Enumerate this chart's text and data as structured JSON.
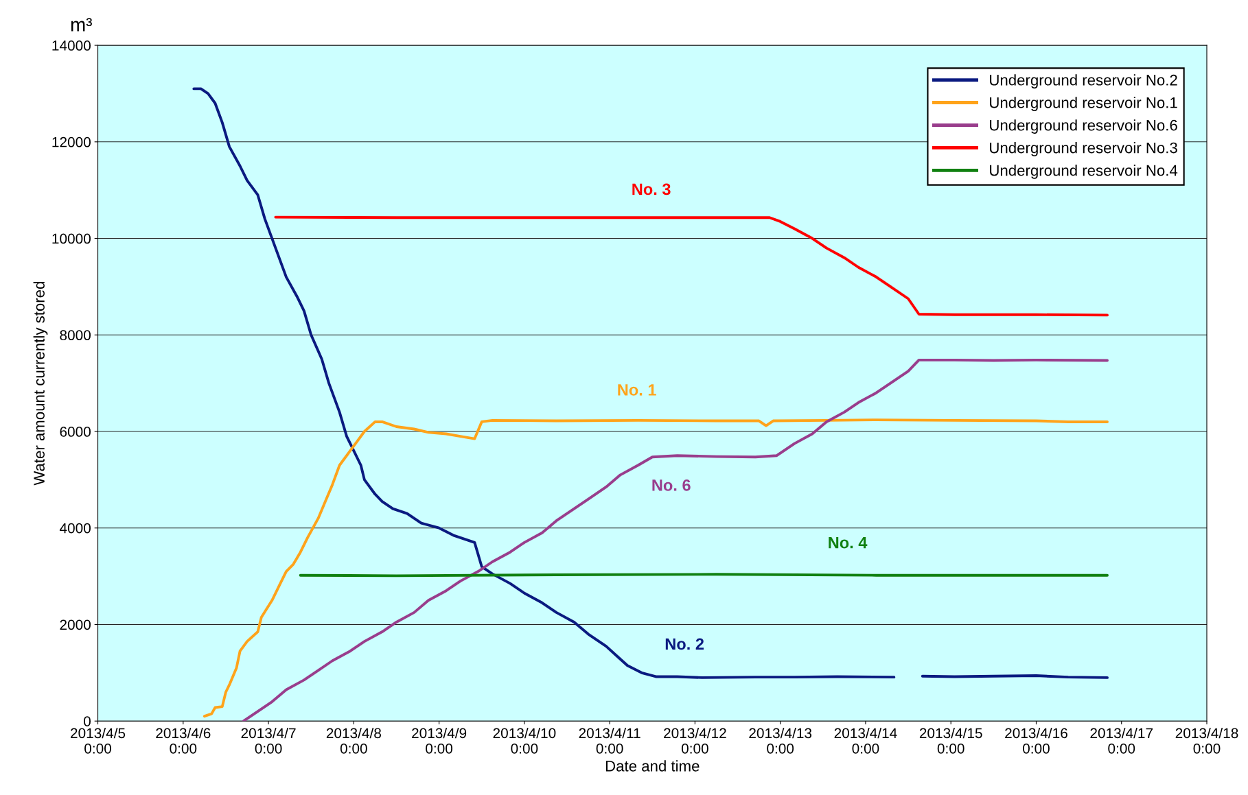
{
  "chart_data": {
    "type": "line",
    "xlabel": "Date and time",
    "ylabel": "Water amount currently stored",
    "xlim": [
      "2013-04-05T00:00",
      "2013-04-18T00:00"
    ],
    "ylim": [
      0,
      14000
    ],
    "xticks": [
      {
        "value": "2013-04-05T00:00",
        "label": "2013/4/5\n0:00"
      },
      {
        "value": "2013-04-06T00:00",
        "label": "2013/4/6\n0:00"
      },
      {
        "value": "2013-04-07T00:00",
        "label": "2013/4/7\n0:00"
      },
      {
        "value": "2013-04-08T00:00",
        "label": "2013/4/8\n0:00"
      },
      {
        "value": "2013-04-09T00:00",
        "label": "2013/4/9\n0:00"
      },
      {
        "value": "2013-04-10T00:00",
        "label": "2013/4/10\n0:00"
      },
      {
        "value": "2013-04-11T00:00",
        "label": "2013/4/11\n0:00"
      },
      {
        "value": "2013-04-12T00:00",
        "label": "2013/4/12\n0:00"
      },
      {
        "value": "2013-04-13T00:00",
        "label": "2013/4/13\n0:00"
      },
      {
        "value": "2013-04-14T00:00",
        "label": "2013/4/14\n0:00"
      },
      {
        "value": "2013-04-15T00:00",
        "label": "2013/4/15\n0:00"
      },
      {
        "value": "2013-04-16T00:00",
        "label": "2013/4/16\n0:00"
      },
      {
        "value": "2013-04-17T00:00",
        "label": "2013/4/17\n0:00"
      },
      {
        "value": "2013-04-18T00:00",
        "label": "2013/4/18\n0:00"
      }
    ],
    "yticks": [
      0,
      2000,
      4000,
      6000,
      8000,
      10000,
      12000,
      14000
    ],
    "grid": "y",
    "legend": "top right",
    "marker": "none",
    "line_style": "solid",
    "series": [
      {
        "name": "Underground reservoir No.2",
        "color": "#0a1a80",
        "x": [
          "2013-04-06T03:00",
          "2013-04-06T05:00",
          "2013-04-06T07:00",
          "2013-04-06T09:00",
          "2013-04-06T11:00",
          "2013-04-06T13:00",
          "2013-04-06T16:00",
          "2013-04-06T18:00",
          "2013-04-06T21:00",
          "2013-04-06T23:00",
          "2013-04-07T02:00",
          "2013-04-07T05:00",
          "2013-04-07T08:00",
          "2013-04-07T10:00",
          "2013-04-07T12:00",
          "2013-04-07T15:00",
          "2013-04-07T17:00",
          "2013-04-07T20:00",
          "2013-04-07T22:00",
          "2013-04-08T00:00",
          "2013-04-08T02:00",
          "2013-04-08T03:00",
          "2013-04-08T06:00",
          "2013-04-08T08:00",
          "2013-04-08T11:00",
          "2013-04-08T15:00",
          "2013-04-08T19:00",
          "2013-04-09T00:00",
          "2013-04-09T04:00",
          "2013-04-09T08:00",
          "2013-04-09T10:00",
          "2013-04-09T12:00",
          "2013-04-09T15:00",
          "2013-04-09T20:00",
          "2013-04-10T00:00",
          "2013-04-10T05:00",
          "2013-04-10T09:00",
          "2013-04-10T14:00",
          "2013-04-10T18:00",
          "2013-04-10T23:00",
          "2013-04-11T02:00",
          "2013-04-11T05:00",
          "2013-04-11T09:00",
          "2013-04-11T13:00",
          "2013-04-11T19:00",
          "2013-04-12T02:00",
          "2013-04-12T17:00",
          "2013-04-13T04:00",
          "2013-04-13T16:00",
          "2013-04-14T08:00",
          "2013-04-14T12:00",
          "2013-04-14T16:00",
          "2013-04-15T01:00",
          "2013-04-15T12:00",
          "2013-04-16T00:00",
          "2013-04-16T09:00",
          "2013-04-16T20:00"
        ],
        "values": [
          13100,
          13100,
          13000,
          12800,
          12400,
          11900,
          11500,
          11200,
          10900,
          10400,
          9800,
          9200,
          8800,
          8500,
          8000,
          7500,
          7000,
          6400,
          5900,
          5600,
          5300,
          5000,
          4700,
          4550,
          4400,
          4300,
          4100,
          4000,
          3850,
          3750,
          3700,
          3200,
          3050,
          2850,
          2650,
          2450,
          2250,
          2050,
          1800,
          1550,
          1350,
          1150,
          1000,
          920,
          920,
          900,
          910,
          910,
          920,
          910,
          null,
          930,
          920,
          930,
          940,
          910,
          900
        ]
      },
      {
        "name": "Underground reservoir No.1",
        "color": "#ffa31a",
        "x": [
          "2013-04-06T06:00",
          "2013-04-06T08:00",
          "2013-04-06T09:00",
          "2013-04-06T11:00",
          "2013-04-06T12:00",
          "2013-04-06T13:00",
          "2013-04-06T15:00",
          "2013-04-06T16:00",
          "2013-04-06T18:00",
          "2013-04-06T21:00",
          "2013-04-06T22:00",
          "2013-04-07T01:00",
          "2013-04-07T03:00",
          "2013-04-07T05:00",
          "2013-04-07T07:00",
          "2013-04-07T09:00",
          "2013-04-07T11:00",
          "2013-04-07T14:00",
          "2013-04-07T16:00",
          "2013-04-07T18:00",
          "2013-04-07T20:00",
          "2013-04-07T23:00",
          "2013-04-08T01:00",
          "2013-04-08T03:00",
          "2013-04-08T06:00",
          "2013-04-08T08:00",
          "2013-04-08T12:00",
          "2013-04-08T17:00",
          "2013-04-08T21:00",
          "2013-04-09T02:00",
          "2013-04-09T06:00",
          "2013-04-09T10:00",
          "2013-04-09T12:00",
          "2013-04-09T15:00",
          "2013-04-10T09:00",
          "2013-04-11T08:00",
          "2013-04-12T06:00",
          "2013-04-12T18:00",
          "2013-04-12T20:00",
          "2013-04-12T22:00",
          "2013-04-13T13:00",
          "2013-04-14T03:00",
          "2013-04-15T01:00",
          "2013-04-16T00:00",
          "2013-04-16T09:00",
          "2013-04-16T20:00"
        ],
        "values": [
          100,
          150,
          280,
          300,
          600,
          750,
          1100,
          1450,
          1650,
          1850,
          2150,
          2500,
          2800,
          3100,
          3250,
          3500,
          3800,
          4200,
          4550,
          4900,
          5300,
          5600,
          5800,
          6000,
          6200,
          6200,
          6100,
          6050,
          5980,
          5950,
          5900,
          5850,
          6200,
          6230,
          6220,
          6230,
          6220,
          6220,
          6120,
          6220,
          6230,
          6240,
          6230,
          6220,
          6200,
          6200
        ]
      },
      {
        "name": "Underground reservoir No.6",
        "color": "#993d8c",
        "x": [
          "2013-04-06T17:00",
          "2013-04-06T20:00",
          "2013-04-07T01:00",
          "2013-04-07T05:00",
          "2013-04-07T10:00",
          "2013-04-07T14:00",
          "2013-04-07T18:00",
          "2013-04-07T23:00",
          "2013-04-08T03:00",
          "2013-04-08T08:00",
          "2013-04-08T12:00",
          "2013-04-08T17:00",
          "2013-04-08T21:00",
          "2013-04-09T02:00",
          "2013-04-09T06:00",
          "2013-04-09T11:00",
          "2013-04-09T15:00",
          "2013-04-09T20:00",
          "2013-04-10T00:00",
          "2013-04-10T05:00",
          "2013-04-10T09:00",
          "2013-04-10T14:00",
          "2013-04-10T18:00",
          "2013-04-10T23:00",
          "2013-04-11T03:00",
          "2013-04-11T08:00",
          "2013-04-11T12:00",
          "2013-04-11T19:00",
          "2013-04-12T06:00",
          "2013-04-12T17:00",
          "2013-04-12T23:00",
          "2013-04-13T04:00",
          "2013-04-13T09:00",
          "2013-04-13T13:00",
          "2013-04-13T18:00",
          "2013-04-13T22:00",
          "2013-04-14T03:00",
          "2013-04-14T07:00",
          "2013-04-14T12:00",
          "2013-04-14T15:00",
          "2013-04-15T01:00",
          "2013-04-15T12:00",
          "2013-04-16T00:00",
          "2013-04-16T20:00"
        ],
        "values": [
          0,
          150,
          400,
          650,
          850,
          1050,
          1250,
          1450,
          1650,
          1850,
          2050,
          2250,
          2500,
          2700,
          2900,
          3100,
          3300,
          3500,
          3700,
          3900,
          4150,
          4400,
          4600,
          4850,
          5100,
          5300,
          5470,
          5500,
          5480,
          5470,
          5500,
          5750,
          5950,
          6200,
          6400,
          6600,
          6800,
          7000,
          7250,
          7480,
          7480,
          7470,
          7480,
          7470
        ]
      },
      {
        "name": "Underground reservoir No.3",
        "color": "#ff0000",
        "x": [
          "2013-04-07T02:00",
          "2013-04-08T12:00",
          "2013-04-10T09:00",
          "2013-04-12T06:00",
          "2013-04-12T21:00",
          "2013-04-13T00:00",
          "2013-04-13T04:00",
          "2013-04-13T09:00",
          "2013-04-13T13:00",
          "2013-04-13T18:00",
          "2013-04-13T22:00",
          "2013-04-14T03:00",
          "2013-04-14T07:00",
          "2013-04-14T12:00",
          "2013-04-14T15:00",
          "2013-04-15T01:00",
          "2013-04-16T00:00",
          "2013-04-16T20:00"
        ],
        "values": [
          10440,
          10430,
          10430,
          10430,
          10430,
          10350,
          10200,
          10000,
          9800,
          9600,
          9400,
          9200,
          9000,
          8750,
          8430,
          8420,
          8420,
          8410
        ]
      },
      {
        "name": "Underground reservoir No.4",
        "color": "#108010",
        "x": [
          "2013-04-07T09:00",
          "2013-04-08T12:00",
          "2013-04-10T09:00",
          "2013-04-12T06:00",
          "2013-04-14T03:00",
          "2013-04-16T20:00"
        ],
        "values": [
          3020,
          3010,
          3030,
          3040,
          3020,
          3020
        ]
      }
    ],
    "annotations": [
      "m³",
      "No. 2",
      "No. 1",
      "No. 6",
      "No. 3",
      "No. 4"
    ]
  }
}
